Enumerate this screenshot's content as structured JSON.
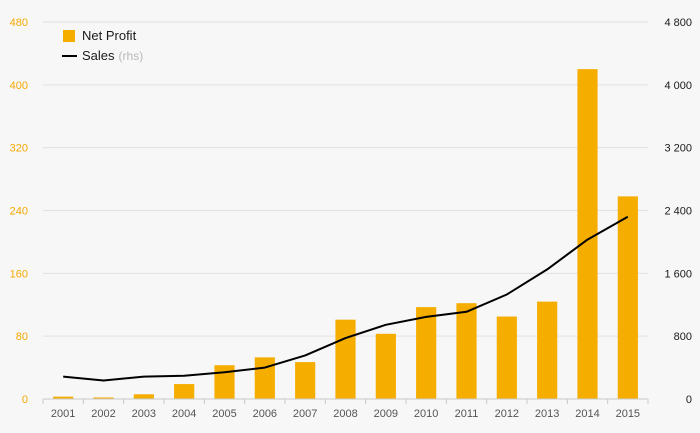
{
  "chart_data": {
    "type": "bar",
    "categories": [
      "2001",
      "2002",
      "2003",
      "2004",
      "2005",
      "2006",
      "2007",
      "2008",
      "2009",
      "2010",
      "2011",
      "2012",
      "2013",
      "2014",
      "2015"
    ],
    "series": [
      {
        "name": "Net Profit",
        "type": "bar",
        "axis": "left",
        "color": "#f5ae00",
        "values": [
          3,
          2,
          6,
          19,
          43,
          53,
          47,
          101,
          83,
          117,
          122,
          105,
          124,
          420,
          258
        ]
      },
      {
        "name": "Sales",
        "name_suffix": "(rhs)",
        "type": "line",
        "axis": "right",
        "color": "#000000",
        "values": [
          285,
          235,
          285,
          295,
          340,
          400,
          555,
          775,
          945,
          1045,
          1110,
          1330,
          1650,
          2030,
          2320
        ]
      }
    ],
    "yleft": {
      "min": 0,
      "max": 480,
      "ticks": [
        0,
        80,
        160,
        240,
        320,
        400,
        480
      ],
      "tick_labels": [
        "0",
        "80",
        "160",
        "240",
        "320",
        "400",
        "480"
      ],
      "color": "#f5a800"
    },
    "yright": {
      "min": 0,
      "max": 4800,
      "ticks": [
        0,
        800,
        1600,
        2400,
        3200,
        4000,
        4800
      ],
      "tick_labels": [
        "0",
        "800",
        "1 600",
        "2 400",
        "3 200",
        "4 000",
        "4 800"
      ],
      "color": "#1a1a1a"
    },
    "grid": true,
    "legend": {
      "position": "top-left"
    }
  }
}
